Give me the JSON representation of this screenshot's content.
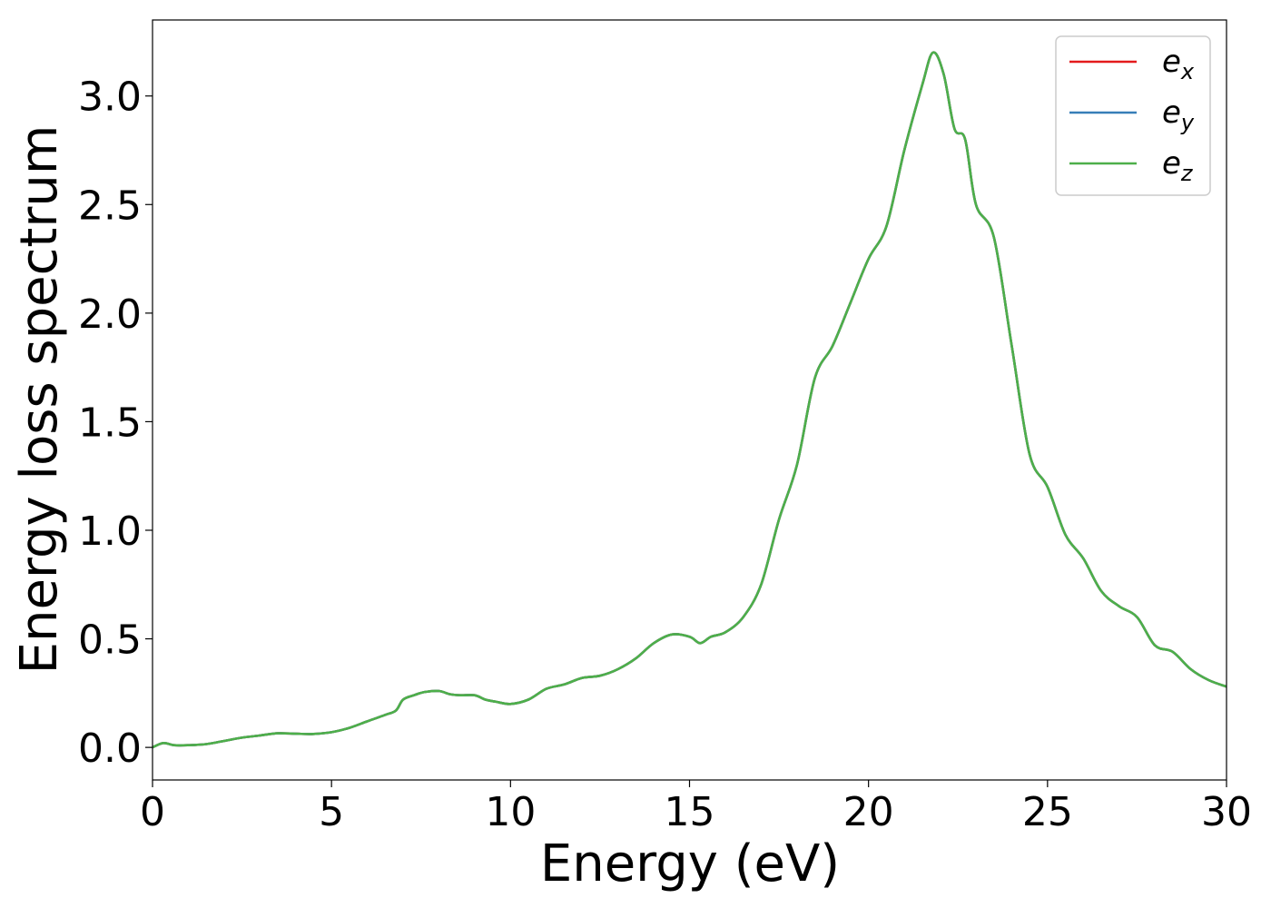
{
  "chart_data": {
    "type": "line",
    "xlabel": "Energy (eV)",
    "ylabel": "Energy loss spectrum",
    "xlim": [
      0,
      30
    ],
    "ylim": [
      -0.15,
      3.35
    ],
    "xticks": [
      "0",
      "5",
      "10",
      "15",
      "20",
      "25",
      "30"
    ],
    "yticks": [
      "0.0",
      "0.5",
      "1.0",
      "1.5",
      "2.0",
      "2.5",
      "3.0"
    ],
    "grid": false,
    "legend_position": "top-right",
    "series": [
      {
        "name": "e",
        "subscript": "x",
        "color": "#e41a1c"
      },
      {
        "name": "e",
        "subscript": "y",
        "color": "#377eb8"
      },
      {
        "name": "e",
        "subscript": "z",
        "color": "#4daf4a"
      }
    ],
    "x": [
      0,
      0.3,
      0.6,
      1.0,
      1.5,
      2.0,
      2.5,
      3.0,
      3.5,
      4.0,
      4.5,
      5.0,
      5.5,
      6.0,
      6.5,
      6.8,
      7.0,
      7.3,
      7.6,
      8.0,
      8.3,
      8.6,
      9.0,
      9.3,
      9.6,
      10.0,
      10.5,
      11.0,
      11.5,
      12.0,
      12.5,
      13.0,
      13.5,
      14.0,
      14.5,
      15.0,
      15.3,
      15.6,
      16.0,
      16.5,
      17.0,
      17.5,
      18.0,
      18.5,
      19.0,
      19.5,
      20.0,
      20.5,
      21.0,
      21.5,
      21.8,
      22.1,
      22.4,
      22.7,
      23.0,
      23.5,
      24.0,
      24.5,
      25.0,
      25.5,
      26.0,
      26.5,
      27.0,
      27.5,
      28.0,
      28.5,
      29.0,
      29.5,
      30.0
    ],
    "values": [
      0.0,
      0.02,
      0.01,
      0.01,
      0.015,
      0.03,
      0.045,
      0.055,
      0.065,
      0.063,
      0.062,
      0.07,
      0.09,
      0.12,
      0.15,
      0.17,
      0.22,
      0.24,
      0.255,
      0.26,
      0.245,
      0.24,
      0.24,
      0.22,
      0.21,
      0.2,
      0.22,
      0.27,
      0.29,
      0.32,
      0.33,
      0.36,
      0.41,
      0.48,
      0.52,
      0.51,
      0.48,
      0.51,
      0.53,
      0.6,
      0.75,
      1.05,
      1.3,
      1.7,
      1.85,
      2.05,
      2.25,
      2.4,
      2.75,
      3.05,
      3.2,
      3.1,
      2.85,
      2.8,
      2.5,
      2.35,
      1.85,
      1.35,
      1.2,
      0.98,
      0.87,
      0.72,
      0.65,
      0.6,
      0.47,
      0.44,
      0.36,
      0.31,
      0.28
    ]
  }
}
